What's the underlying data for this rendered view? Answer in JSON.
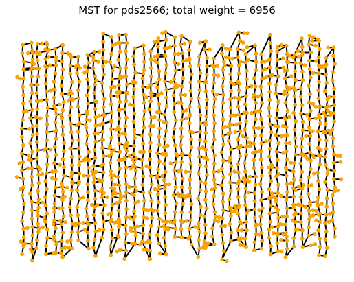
{
  "figure": {
    "title": "MST for pds2566; total weight = 6956"
  },
  "colors": {
    "edge": "#000000",
    "node_fill": "#ffa500",
    "node_stroke": "#e69500",
    "background": "#ffffff"
  },
  "graph": {
    "instance": "pds2566",
    "total_weight": 6956,
    "edge_style": "black line segments",
    "node_style": "orange dots"
  }
}
